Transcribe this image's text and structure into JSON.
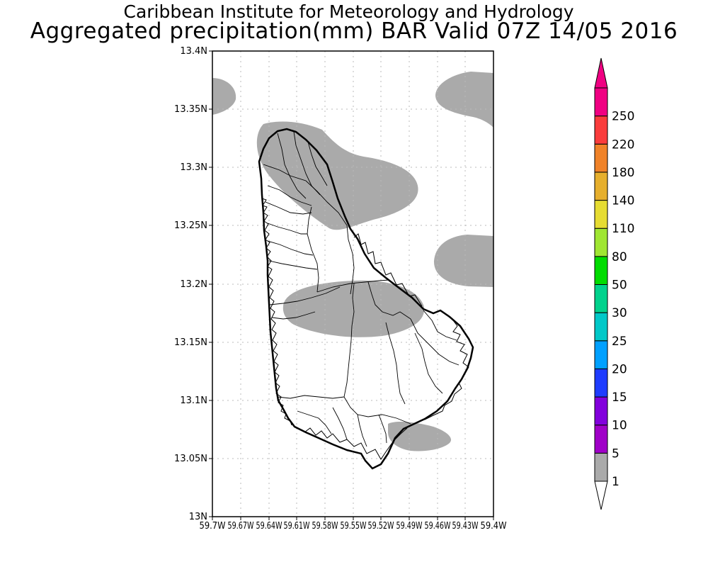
{
  "header": {
    "title": "Caribbean Institute for Meteorology and Hydrology",
    "subtitle": "Aggregated precipitation(mm) BAR Valid 07Z 14/05 2016"
  },
  "axes": {
    "lat_labels": [
      "13.4N",
      "13.35N",
      "13.3N",
      "13.25N",
      "13.2N",
      "13.15N",
      "13.1N",
      "13.05N",
      "13N"
    ],
    "lon_labels": [
      "59.7W",
      "59.67W",
      "59.64W",
      "59.61W",
      "59.58W",
      "59.55W",
      "59.52W",
      "59.49W",
      "59.46W",
      "59.43W",
      "59.4W"
    ]
  },
  "colorbar": {
    "levels": [
      "1",
      "5",
      "10",
      "15",
      "20",
      "25",
      "30",
      "50",
      "80",
      "110",
      "140",
      "180",
      "220",
      "250"
    ],
    "colors": [
      "#aaaaaa",
      "#a000c8",
      "#8200dc",
      "#1e3cff",
      "#00a0ff",
      "#00c8c8",
      "#00d28c",
      "#00dc00",
      "#a0e632",
      "#e6dc32",
      "#e6af2d",
      "#f08228",
      "#fa3c3c",
      "#f00082"
    ],
    "below_color": "#ffffff",
    "above_color": "#f00082"
  },
  "map": {
    "island": "Barbados",
    "precip_fill_color": "#aaaaaa",
    "precip_class": "1-5"
  }
}
